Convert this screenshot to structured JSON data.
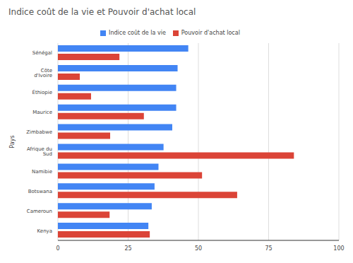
{
  "chart_data": {
    "type": "bar",
    "title": "Indice coût de la vie et Pouvoir d'achat local",
    "y_label": "Pays",
    "orientation": "horizontal",
    "categories": [
      "Sénégal",
      "Côte d'Ivoire",
      "Éthiopie",
      "Maurice",
      "Zimbabwe",
      "Afrique du Sud",
      "Namibie",
      "Botswana",
      "Cameroun",
      "Kenya"
    ],
    "series": [
      {
        "name": "Indice coût de la vie",
        "color": "#4285f4",
        "values": [
          46.4,
          42.6,
          42.1,
          42.1,
          40.7,
          37.6,
          35.8,
          34.4,
          33.4,
          32.2
        ]
      },
      {
        "name": "Pouvoir d'achat local",
        "color": "#db4437",
        "values": [
          21.9,
          7.8,
          11.8,
          30.6,
          18.6,
          84.0,
          51.3,
          63.8,
          18.4,
          32.7
        ]
      }
    ],
    "xlim": [
      0,
      100
    ],
    "xticks": [
      0,
      25,
      50,
      75,
      100
    ],
    "grid": true,
    "legend": "top"
  }
}
